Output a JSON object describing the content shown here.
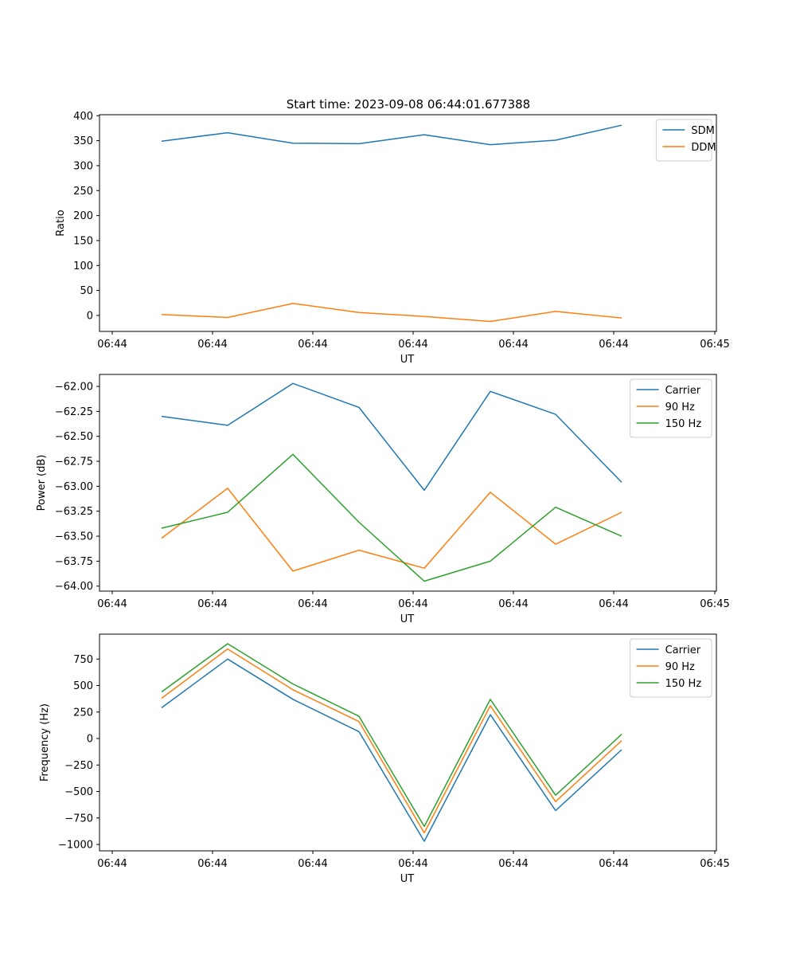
{
  "title": "Start time: 2023-09-08 06:44:01.677388",
  "colors": {
    "blue": "#1f77b4",
    "orange": "#ff7f0e",
    "green": "#2ca02c"
  },
  "chart_data": [
    {
      "type": "line",
      "xlabel": "UT",
      "ylabel": "Ratio",
      "x_tick_labels": [
        "06:44",
        "06:44",
        "06:44",
        "06:44",
        "06:44",
        "06:44",
        "06:45"
      ],
      "y_ticks": [
        0,
        50,
        100,
        150,
        200,
        250,
        300,
        350,
        400
      ],
      "y_tick_labels": [
        "0",
        "50",
        "100",
        "150",
        "200",
        "250",
        "300",
        "350",
        "400"
      ],
      "ylim": [
        -32,
        402
      ],
      "legend_position": "top-right",
      "series": [
        {
          "name": "SDM",
          "color": "#1f77b4",
          "values": [
            349,
            366,
            345,
            344,
            362,
            342,
            351,
            381
          ]
        },
        {
          "name": "DDM",
          "color": "#ff7f0e",
          "values": [
            2,
            -4,
            24,
            6,
            -2,
            -12,
            8,
            -5
          ]
        }
      ]
    },
    {
      "type": "line",
      "xlabel": "UT",
      "ylabel": "Power (dB)",
      "x_tick_labels": [
        "06:44",
        "06:44",
        "06:44",
        "06:44",
        "06:44",
        "06:44",
        "06:45"
      ],
      "y_ticks": [
        -64.0,
        -63.75,
        -63.5,
        -63.25,
        -63.0,
        -62.75,
        -62.5,
        -62.25,
        -62.0
      ],
      "y_tick_labels": [
        "−64.00",
        "−63.75",
        "−63.50",
        "−63.25",
        "−63.00",
        "−62.75",
        "−62.50",
        "−62.25",
        "−62.00"
      ],
      "ylim": [
        -64.05,
        -61.88
      ],
      "legend_position": "top-right",
      "series": [
        {
          "name": "Carrier",
          "color": "#1f77b4",
          "values": [
            -62.3,
            -62.39,
            -61.97,
            -62.21,
            -63.04,
            -62.05,
            -62.28,
            -62.96
          ]
        },
        {
          "name": "90 Hz",
          "color": "#ff7f0e",
          "values": [
            -63.52,
            -63.02,
            -63.85,
            -63.64,
            -63.82,
            -63.06,
            -63.58,
            -63.26
          ]
        },
        {
          "name": "150 Hz",
          "color": "#2ca02c",
          "values": [
            -63.42,
            -63.26,
            -62.68,
            -63.36,
            -63.95,
            -63.75,
            -63.21,
            -63.5
          ]
        }
      ]
    },
    {
      "type": "line",
      "xlabel": "UT",
      "ylabel": "Frequency (Hz)",
      "x_tick_labels": [
        "06:44",
        "06:44",
        "06:44",
        "06:44",
        "06:44",
        "06:44",
        "06:45"
      ],
      "y_ticks": [
        -1000,
        -750,
        -500,
        -250,
        0,
        250,
        500,
        750
      ],
      "y_tick_labels": [
        "−1000",
        "−750",
        "−500",
        "−250",
        "0",
        "250",
        "500",
        "750"
      ],
      "ylim": [
        -1060,
        985
      ],
      "legend_position": "top-right",
      "series": [
        {
          "name": "Carrier",
          "color": "#1f77b4",
          "values": [
            290,
            750,
            370,
            65,
            -970,
            225,
            -680,
            -105
          ]
        },
        {
          "name": "90 Hz",
          "color": "#ff7f0e",
          "values": [
            380,
            845,
            460,
            160,
            -890,
            310,
            -595,
            -20
          ]
        },
        {
          "name": "150 Hz",
          "color": "#2ca02c",
          "values": [
            440,
            895,
            515,
            210,
            -830,
            370,
            -535,
            40
          ]
        }
      ]
    }
  ]
}
